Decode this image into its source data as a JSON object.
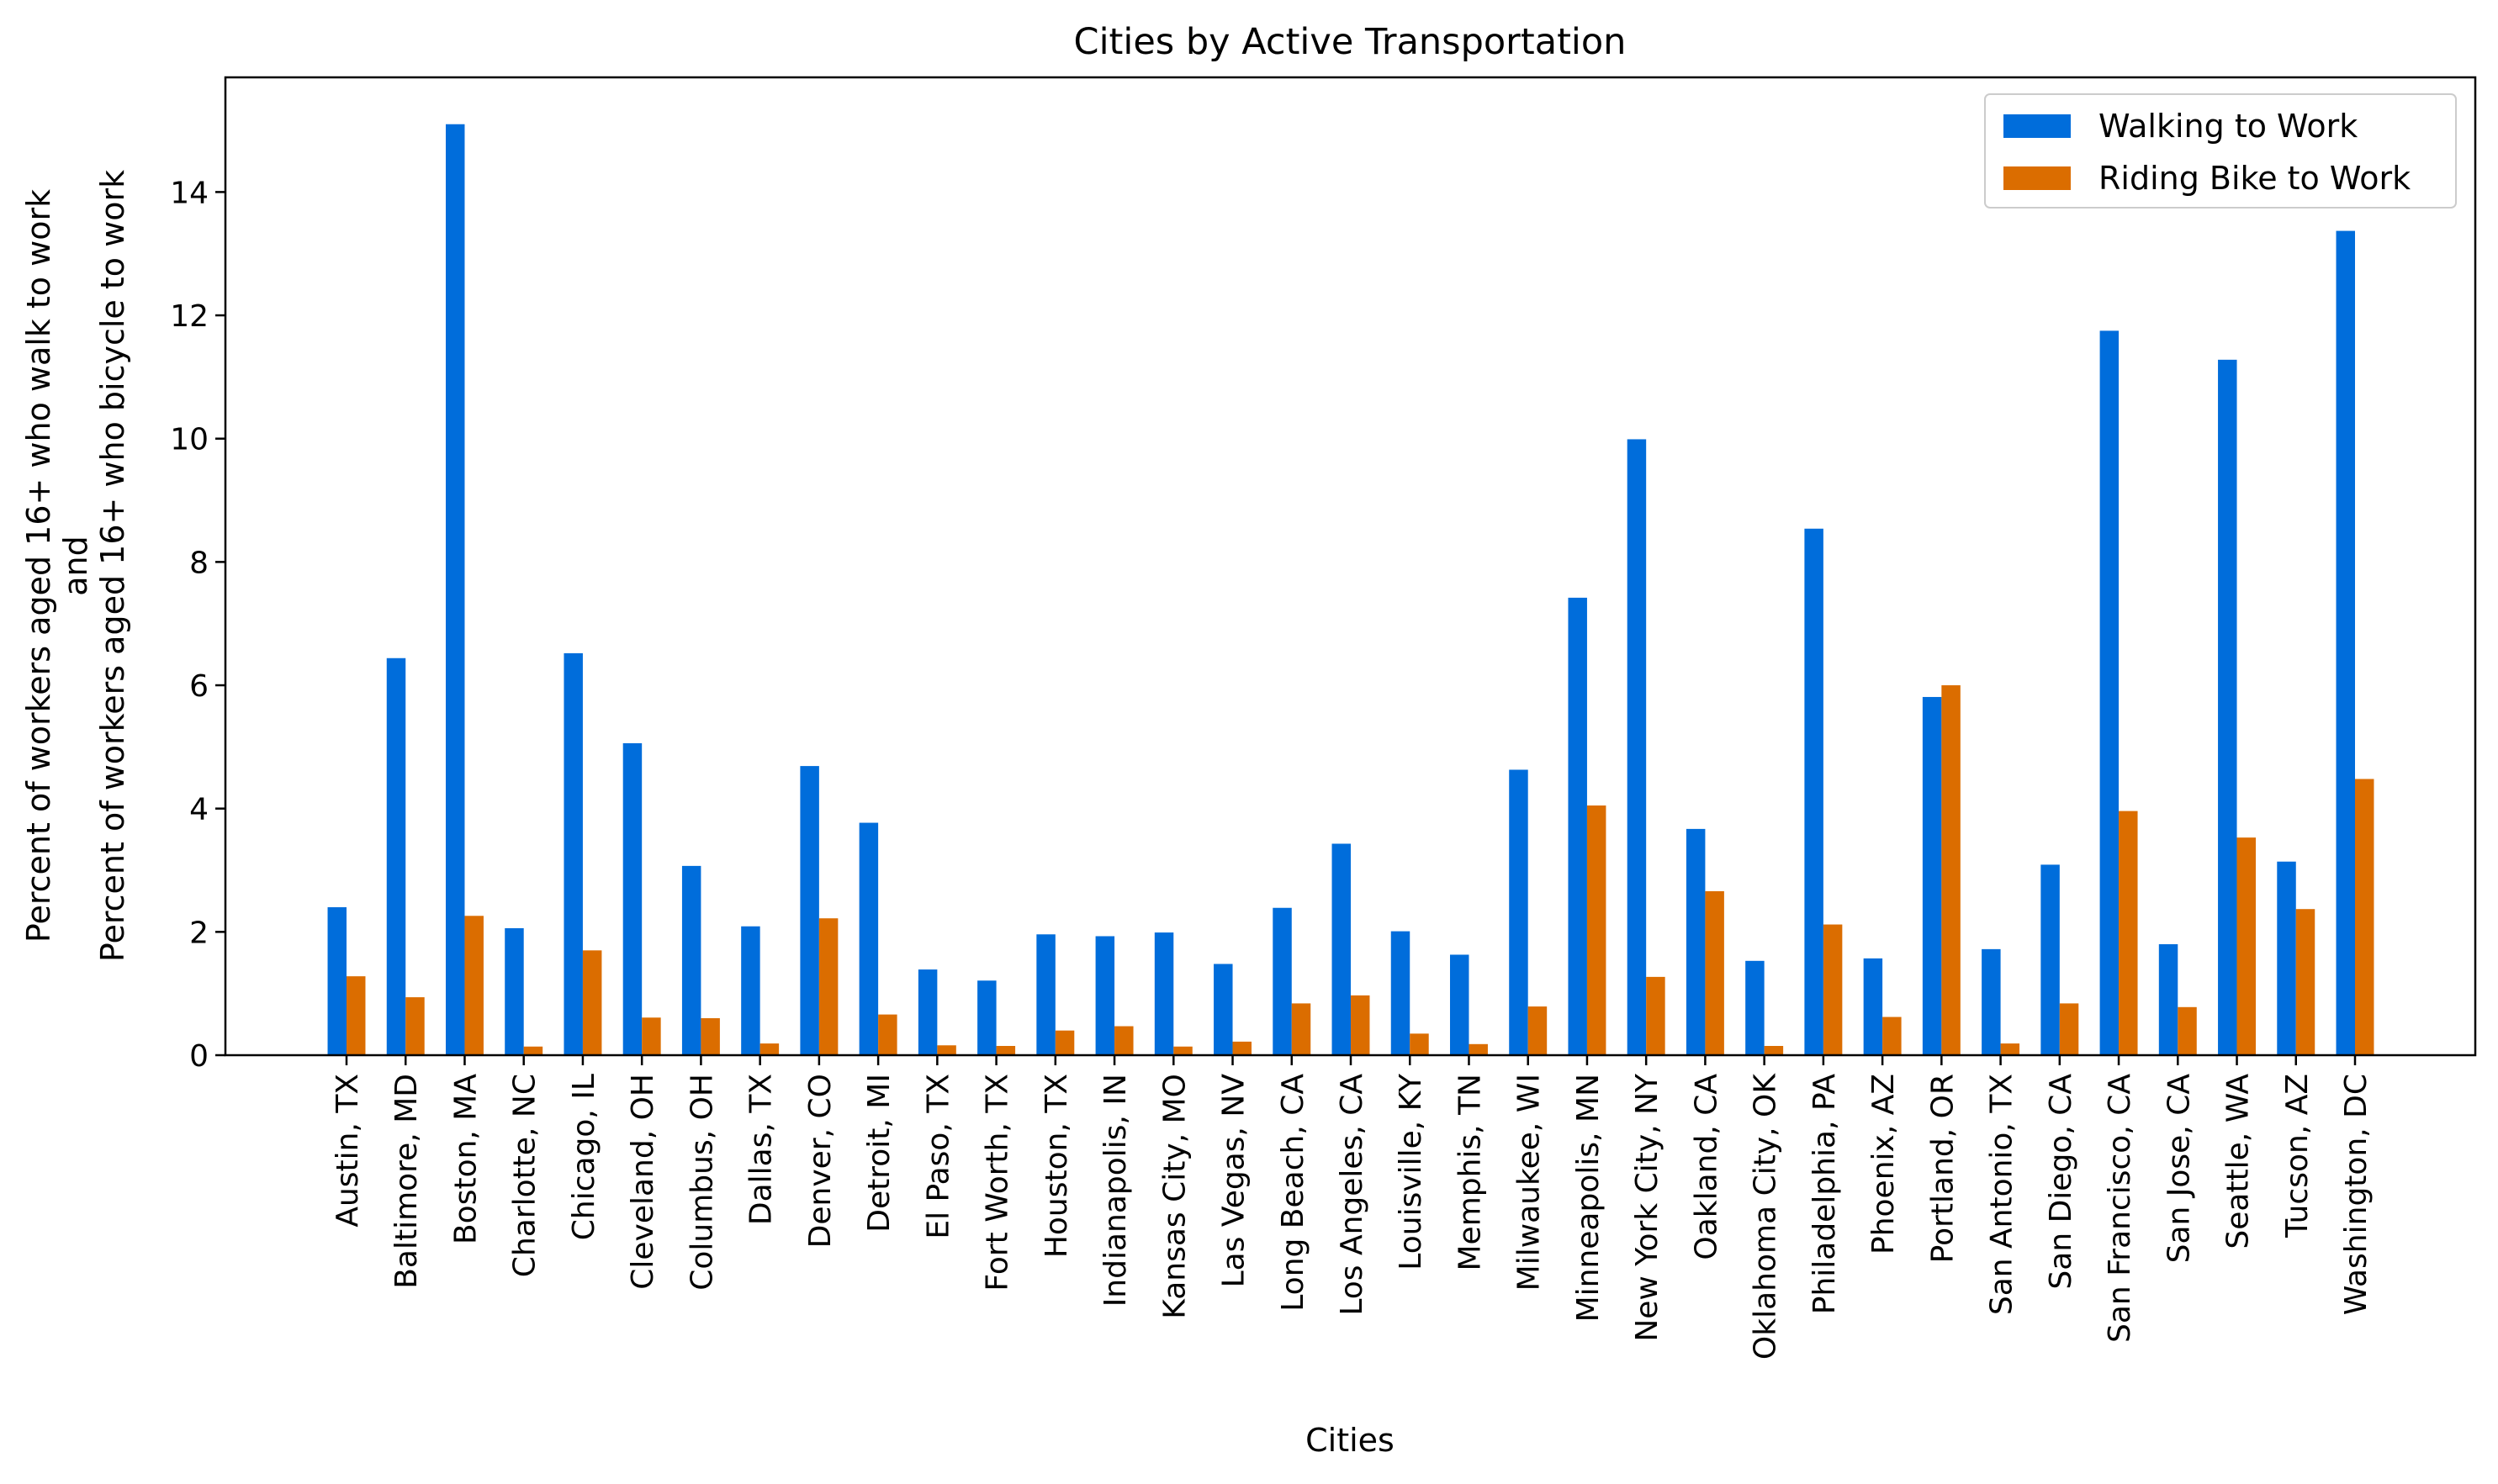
{
  "chart_data": {
    "type": "bar",
    "title": "Cities by Active Transportation",
    "xlabel": "Cities",
    "ylabel_lines": [
      "Percent of workers aged 16+ who walk to work",
      "and",
      "Percent of workers aged 16+ who bicycle to work"
    ],
    "ylim": [
      0,
      15.86
    ],
    "yticks": [
      0,
      2,
      4,
      6,
      8,
      10,
      12,
      14
    ],
    "legend_position": "top-right",
    "categories": [
      "Austin, TX",
      "Baltimore, MD",
      "Boston, MA",
      "Charlotte, NC",
      "Chicago, IL",
      "Cleveland, OH",
      "Columbus, OH",
      "Dallas, TX",
      "Denver, CO",
      "Detroit, MI",
      "El Paso, TX",
      "Fort Worth, TX",
      "Houston, TX",
      "Indianapolis, IN",
      "Kansas City, MO",
      "Las Vegas, NV",
      "Long Beach, CA",
      "Los Angeles, CA",
      "Louisville, KY",
      "Memphis, TN",
      "Milwaukee, WI",
      "Minneapolis, MN",
      "New York City, NY",
      "Oakland, CA",
      "Oklahoma City, OK",
      "Philadelphia, PA",
      "Phoenix, AZ",
      "Portland, OR",
      "San Antonio, TX",
      "San Diego, CA",
      "San Francisco, CA",
      "San Jose, CA",
      "Seattle, WA",
      "Tucson, AZ",
      "Washington, DC"
    ],
    "series": [
      {
        "name": "Walking to Work",
        "color": "#006ddb",
        "values": [
          2.4,
          6.44,
          15.1,
          2.06,
          6.52,
          5.06,
          3.07,
          2.09,
          4.69,
          3.77,
          1.39,
          1.21,
          1.96,
          1.93,
          1.99,
          1.48,
          2.39,
          3.43,
          2.01,
          1.63,
          4.63,
          7.42,
          9.99,
          3.67,
          1.53,
          8.54,
          1.57,
          5.81,
          1.72,
          3.09,
          11.75,
          1.8,
          11.28,
          3.14,
          13.37
        ]
      },
      {
        "name": "Riding Bike to Work",
        "color": "#db6d00",
        "values": [
          1.28,
          0.94,
          2.26,
          0.14,
          1.7,
          0.61,
          0.6,
          0.19,
          2.22,
          0.66,
          0.16,
          0.15,
          0.4,
          0.47,
          0.14,
          0.22,
          0.84,
          0.97,
          0.35,
          0.18,
          0.79,
          4.05,
          1.27,
          2.66,
          0.15,
          2.12,
          0.62,
          6.0,
          0.19,
          0.84,
          3.96,
          0.78,
          3.53,
          2.37,
          4.48
        ]
      }
    ]
  }
}
